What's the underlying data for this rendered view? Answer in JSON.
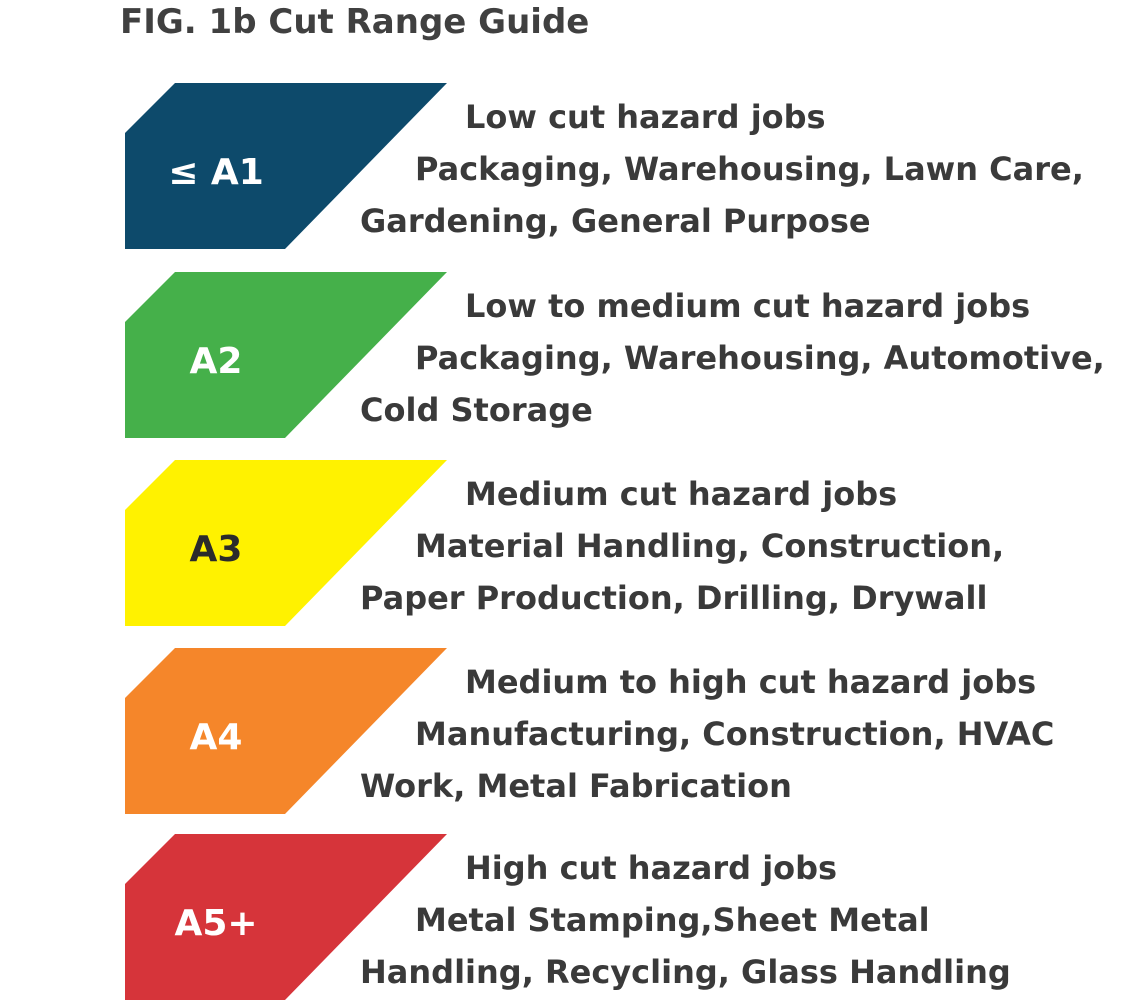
{
  "title": "FIG. 1b Cut Range Guide",
  "levels": [
    {
      "label": "≤ A1",
      "color": "#0d4a6b",
      "text_color": "#ffffff",
      "lines": [
        "Low cut hazard jobs",
        "Packaging, Warehousing, Lawn Care,",
        "Gardening, General Purpose"
      ]
    },
    {
      "label": "A2",
      "color": "#45b04a",
      "text_color": "#ffffff",
      "lines": [
        "Low to medium cut hazard jobs",
        "Packaging, Warehousing, Automotive,",
        "Cold Storage"
      ]
    },
    {
      "label": "A3",
      "color": "#fff200",
      "text_color": "#2b2b2b",
      "lines": [
        "Medium cut hazard jobs",
        "Material Handling, Construction,",
        "Paper Production, Drilling, Drywall"
      ]
    },
    {
      "label": "A4",
      "color": "#f5862a",
      "text_color": "#ffffff",
      "lines": [
        "Medium to high cut hazard jobs",
        "Manufacturing, Construction, HVAC",
        "Work, Metal Fabrication"
      ]
    },
    {
      "label": "A5+",
      "color": "#d6343a",
      "text_color": "#ffffff",
      "lines": [
        "High cut hazard jobs",
        "Metal Stamping,Sheet Metal",
        "Handling, Recycling, Glass Handling"
      ]
    }
  ]
}
